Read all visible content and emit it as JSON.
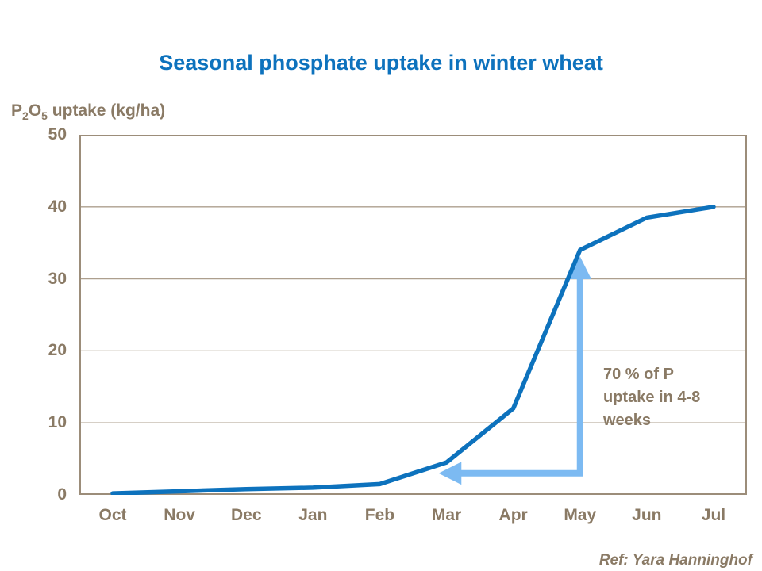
{
  "title": "Seasonal phosphate uptake in winter wheat",
  "y_axis_title_parts": {
    "p": "P",
    "sub1": "2",
    "o": "O",
    "sub2": "5",
    "rest": " uptake (kg/ha)"
  },
  "footer": {
    "ref": "Ref: Yara Hanninghof"
  },
  "colors": {
    "title_blue": "#0d72bd",
    "line_blue": "#0d72bd",
    "arrow_light_blue": "#7cbaf2",
    "text_brown": "#8a7a65",
    "grid_brown": "#ad9f8e",
    "border_brown": "#9c8d7a",
    "background": "#ffffff"
  },
  "chart_data": {
    "type": "line",
    "title": "Seasonal phosphate uptake in winter wheat",
    "xlabel": "",
    "ylabel": "P2O5 uptake (kg/ha)",
    "categories": [
      "Oct",
      "Nov",
      "Dec",
      "Jan",
      "Feb",
      "Mar",
      "Apr",
      "May",
      "Jun",
      "Jul"
    ],
    "series": [
      {
        "name": "P2O5 uptake (kg/ha)",
        "values": [
          0.2,
          0.5,
          0.8,
          1.0,
          1.5,
          4.5,
          12,
          34,
          38.5,
          40
        ]
      }
    ],
    "ylim": [
      0,
      50
    ],
    "yticks": [
      0,
      10,
      20,
      30,
      40,
      50
    ],
    "grid": "horizontal",
    "legend": "none",
    "annotation": {
      "text": "70 % of P uptake in 4-8 weeks",
      "arrow": {
        "style": "double-headed-elbow",
        "points": [
          {
            "month": "Mar",
            "value": 3
          },
          {
            "month": "May",
            "value": 3
          },
          {
            "month": "May",
            "value": 32
          }
        ]
      }
    }
  }
}
